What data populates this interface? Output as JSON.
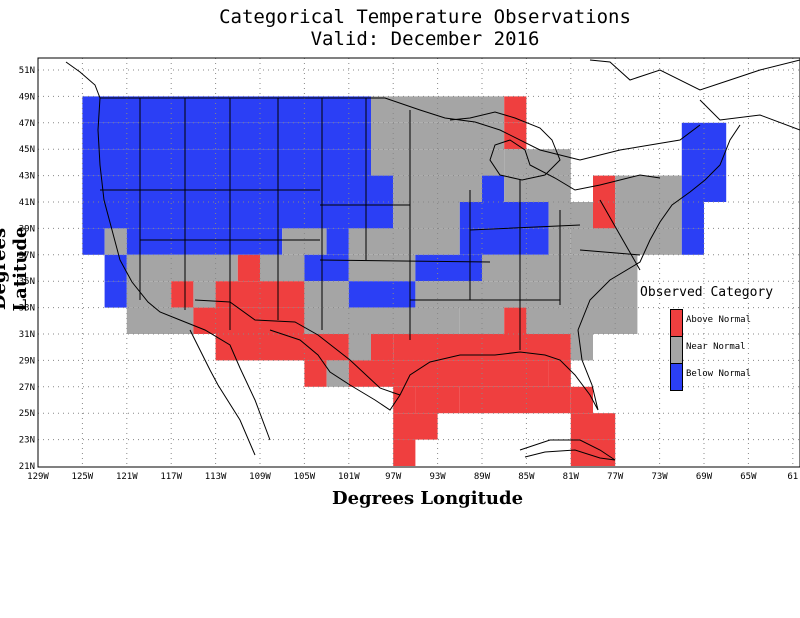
{
  "title": "Categorical Temperature Observations",
  "subtitle": "Valid: December 2016",
  "xlabel": "Degrees Longitude",
  "ylabel": "Degrees Latitude",
  "x_ticks": [
    "129W",
    "125W",
    "121W",
    "117W",
    "113W",
    "109W",
    "105W",
    "101W",
    "97W",
    "93W",
    "89W",
    "85W",
    "81W",
    "77W",
    "73W",
    "69W",
    "65W",
    "61"
  ],
  "y_ticks": [
    "21N",
    "23N",
    "25N",
    "27N",
    "29N",
    "31N",
    "33N",
    "35N",
    "37N",
    "39N",
    "41N",
    "43N",
    "45N",
    "47N",
    "49N",
    "51N"
  ],
  "legend": {
    "title": "Observed Category",
    "items": [
      {
        "label": "Above Normal",
        "color": "#ef3f3f"
      },
      {
        "label": "Near Normal",
        "color": "#a5a5a5"
      },
      {
        "label": "Below Normal",
        "color": "#2b3ff5"
      }
    ]
  },
  "colors": {
    "above": "#ef3f3f",
    "near": "#a5a5a5",
    "below": "#2b3ff5"
  },
  "chart_data": {
    "type": "heatmap",
    "title": "Categorical Temperature Observations",
    "subtitle": "Valid: December 2016",
    "xlabel": "Degrees Longitude",
    "ylabel": "Degrees Latitude",
    "xlim": [
      -129,
      -61
    ],
    "ylim": [
      21,
      52
    ],
    "cell_size_deg": 2,
    "categories": [
      "Above Normal",
      "Near Normal",
      "Below Normal"
    ],
    "rows": [
      {
        "lat_top": 49,
        "spans": [
          [
            -125,
            -99,
            "below"
          ],
          [
            -99,
            -87,
            "near"
          ],
          [
            -87,
            -85,
            "above"
          ]
        ]
      },
      {
        "lat_top": 47,
        "spans": [
          [
            -125,
            -99,
            "below"
          ],
          [
            -99,
            -87,
            "near"
          ],
          [
            -87,
            -85,
            "above"
          ],
          [
            -71,
            -67,
            "below"
          ]
        ]
      },
      {
        "lat_top": 45,
        "spans": [
          [
            -125,
            -99,
            "below"
          ],
          [
            -99,
            -87,
            "near"
          ],
          [
            -87,
            -81,
            "near"
          ],
          [
            -71,
            -67,
            "below"
          ]
        ]
      },
      {
        "lat_top": 43,
        "spans": [
          [
            -125,
            -97,
            "below"
          ],
          [
            -97,
            -89,
            "near"
          ],
          [
            -89,
            -87,
            "below"
          ],
          [
            -87,
            -81,
            "near"
          ],
          [
            -79,
            -77,
            "above"
          ],
          [
            -77,
            -71,
            "near"
          ],
          [
            -71,
            -67,
            "below"
          ]
        ]
      },
      {
        "lat_top": 41,
        "spans": [
          [
            -125,
            -97,
            "below"
          ],
          [
            -97,
            -91,
            "near"
          ],
          [
            -91,
            -83,
            "below"
          ],
          [
            -83,
            -79,
            "near"
          ],
          [
            -79,
            -77,
            "above"
          ],
          [
            -77,
            -71,
            "near"
          ],
          [
            -71,
            -69,
            "below"
          ]
        ]
      },
      {
        "lat_top": 39,
        "spans": [
          [
            -125,
            -123,
            "below"
          ],
          [
            -123,
            -121,
            "near"
          ],
          [
            -121,
            -107,
            "below"
          ],
          [
            -107,
            -103,
            "near"
          ],
          [
            -103,
            -101,
            "below"
          ],
          [
            -101,
            -91,
            "near"
          ],
          [
            -91,
            -83,
            "below"
          ],
          [
            -83,
            -81,
            "near"
          ],
          [
            -81,
            -71,
            "near"
          ],
          [
            -71,
            -69,
            "below"
          ]
        ]
      },
      {
        "lat_top": 37,
        "spans": [
          [
            -123,
            -121,
            "below"
          ],
          [
            -121,
            -111,
            "near"
          ],
          [
            -111,
            -109,
            "above"
          ],
          [
            -109,
            -105,
            "near"
          ],
          [
            -105,
            -101,
            "below"
          ],
          [
            -101,
            -95,
            "near"
          ],
          [
            -95,
            -89,
            "below"
          ],
          [
            -89,
            -75,
            "near"
          ]
        ]
      },
      {
        "lat_top": 35,
        "spans": [
          [
            -123,
            -121,
            "below"
          ],
          [
            -121,
            -117,
            "near"
          ],
          [
            -117,
            -115,
            "above"
          ],
          [
            -115,
            -113,
            "near"
          ],
          [
            -113,
            -105,
            "above"
          ],
          [
            -105,
            -101,
            "near"
          ],
          [
            -101,
            -95,
            "below"
          ],
          [
            -95,
            -75,
            "near"
          ]
        ]
      },
      {
        "lat_top": 33,
        "spans": [
          [
            -121,
            -115,
            "near"
          ],
          [
            -115,
            -105,
            "above"
          ],
          [
            -105,
            -91,
            "near"
          ],
          [
            -91,
            -87,
            "near"
          ],
          [
            -87,
            -85,
            "above"
          ],
          [
            -85,
            -75,
            "near"
          ]
        ]
      },
      {
        "lat_top": 31,
        "spans": [
          [
            -113,
            -101,
            "above"
          ],
          [
            -101,
            -99,
            "near"
          ],
          [
            -99,
            -97,
            "above"
          ],
          [
            -97,
            -89,
            "above"
          ],
          [
            -89,
            -81,
            "above"
          ],
          [
            -81,
            -79,
            "near"
          ]
        ]
      },
      {
        "lat_top": 29,
        "spans": [
          [
            -105,
            -103,
            "above"
          ],
          [
            -103,
            -101,
            "near"
          ],
          [
            -101,
            -83,
            "above"
          ],
          [
            -83,
            -81,
            "above"
          ]
        ]
      },
      {
        "lat_top": 27,
        "spans": [
          [
            -97,
            -95,
            "above"
          ],
          [
            -95,
            -91,
            "above"
          ],
          [
            -91,
            -81,
            "above"
          ],
          [
            -81,
            -79,
            "above"
          ]
        ]
      },
      {
        "lat_top": 25,
        "spans": [
          [
            -97,
            -93,
            "above"
          ],
          [
            -81,
            -77,
            "above"
          ]
        ]
      },
      {
        "lat_top": 23,
        "spans": [
          [
            -97,
            -95,
            "above"
          ],
          [
            -81,
            -77,
            "above"
          ]
        ]
      }
    ]
  }
}
